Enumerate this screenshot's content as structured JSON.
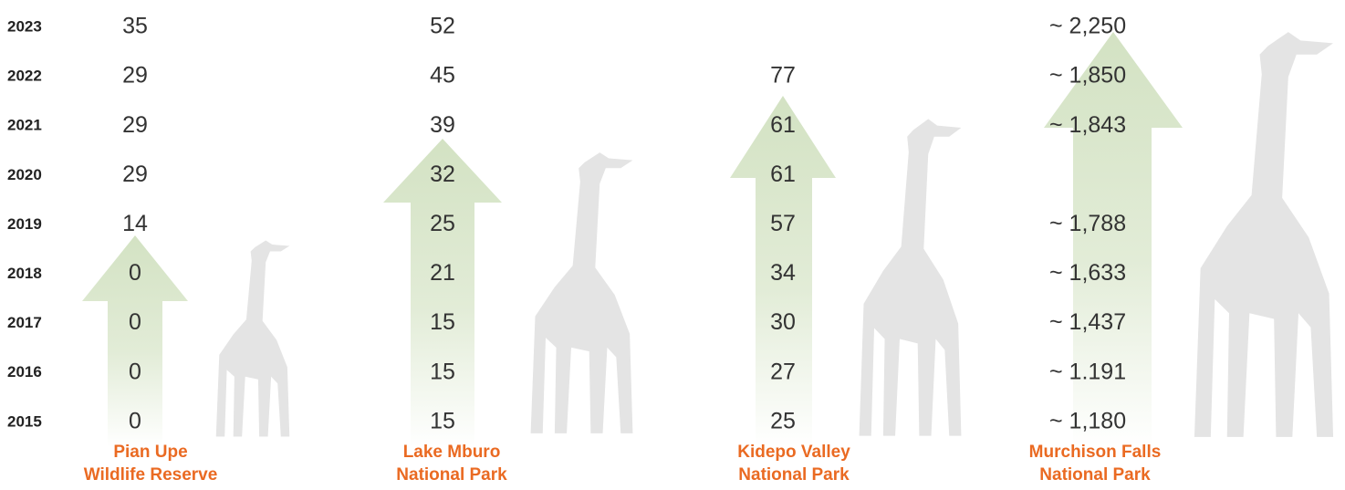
{
  "years": [
    "2023",
    "2022",
    "2021",
    "2020",
    "2019",
    "2018",
    "2017",
    "2016",
    "2015"
  ],
  "parks": [
    {
      "name": [
        "Pian Upe",
        "Wildlife Reserve"
      ],
      "counts": [
        "35",
        "29",
        "29",
        "29",
        "14",
        "0",
        "0",
        "0",
        "0"
      ]
    },
    {
      "name": [
        "Lake Mburo",
        "National Park"
      ],
      "counts": [
        "52",
        "45",
        "39",
        "32",
        "25",
        "21",
        "15",
        "15",
        "15"
      ]
    },
    {
      "name": [
        "Kidepo Valley",
        "National Park"
      ],
      "counts": [
        null,
        "77",
        "61",
        "61",
        "57",
        "34",
        "30",
        "27",
        "25"
      ]
    },
    {
      "name": [
        "Murchison Falls",
        "National Park"
      ],
      "counts": [
        "~ 2,250",
        "~ 1,850",
        "~ 1,843",
        null,
        "~ 1,788",
        "~ 1,633",
        "~ 1,437",
        "~ 1.191",
        "~ 1,180"
      ]
    }
  ]
}
